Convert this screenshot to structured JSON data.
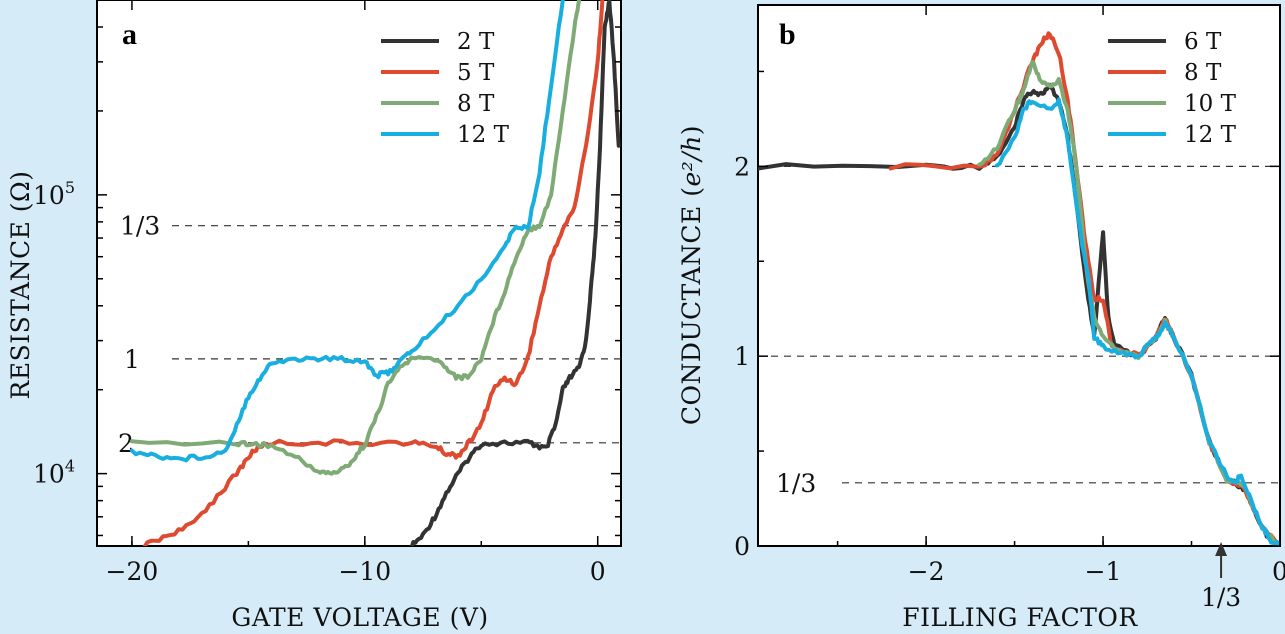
{
  "chart_data": [
    {
      "type": "line",
      "panel": "a",
      "xlabel": "GATE VOLTAGE (V)",
      "ylabel": "RESISTANCE (Ω)",
      "yscale": "log",
      "xlim": [
        -21.5,
        1
      ],
      "ylim": [
        5500,
        500000
      ],
      "xticks": [
        {
          "v": -20,
          "label": "−20"
        },
        {
          "v": -10,
          "label": "−10"
        },
        {
          "v": 0,
          "label": "0"
        }
      ],
      "yticks": [
        {
          "v": 10000,
          "base": "10",
          "exp": "4"
        },
        {
          "v": 100000,
          "base": "10",
          "exp": "5"
        }
      ],
      "reference_lines": [
        {
          "value": 77500,
          "label": "1/3"
        },
        {
          "value": 25800,
          "label": "1"
        },
        {
          "value": 12900,
          "label": "2"
        }
      ],
      "legend": [
        "2 T",
        "5 T",
        "8 T",
        "12 T"
      ],
      "series": [
        {
          "name": "2 T",
          "color": "#333333",
          "points": [
            [
              -8.0,
              5500
            ],
            [
              -7.5,
              6000
            ],
            [
              -7,
              7000
            ],
            [
              -6.5,
              8500
            ],
            [
              -6,
              10000
            ],
            [
              -5.5,
              11500
            ],
            [
              -5,
              12800
            ],
            [
              -4,
              12900
            ],
            [
              -3,
              12900
            ],
            [
              -2.5,
              12500
            ],
            [
              -2.2,
              12300
            ],
            [
              -1.8,
              15000
            ],
            [
              -1.5,
              20000
            ],
            [
              -1.2,
              22000
            ],
            [
              -0.8,
              24000
            ],
            [
              -0.5,
              30000
            ],
            [
              -0.3,
              45000
            ],
            [
              -0.1,
              70000
            ],
            [
              0.1,
              150000
            ],
            [
              0.3,
              400000
            ],
            [
              0.5,
              500000
            ],
            [
              0.7,
              300000
            ],
            [
              0.9,
              150000
            ]
          ]
        },
        {
          "name": "5 T",
          "color": "#dd4a30",
          "points": [
            [
              -19.5,
              5500
            ],
            [
              -18.5,
              6000
            ],
            [
              -17.5,
              6500
            ],
            [
              -16.5,
              8000
            ],
            [
              -15.5,
              10000
            ],
            [
              -15,
              11500
            ],
            [
              -14.5,
              12600
            ],
            [
              -14,
              12900
            ],
            [
              -12,
              12900
            ],
            [
              -10,
              12900
            ],
            [
              -8,
              12900
            ],
            [
              -7,
              12600
            ],
            [
              -6.5,
              11800
            ],
            [
              -6,
              11600
            ],
            [
              -5.5,
              13000
            ],
            [
              -5,
              15000
            ],
            [
              -4.5,
              20000
            ],
            [
              -4,
              22000
            ],
            [
              -3.5,
              21000
            ],
            [
              -3,
              26000
            ],
            [
              -2.5,
              40000
            ],
            [
              -2,
              60000
            ],
            [
              -1.5,
              75000
            ],
            [
              -1.0,
              90000
            ],
            [
              -0.5,
              150000
            ],
            [
              0,
              300000
            ],
            [
              0.2,
              500000
            ]
          ]
        },
        {
          "name": "8 T",
          "color": "#7faa76",
          "points": [
            [
              -20,
              12900
            ],
            [
              -15.5,
              12900
            ],
            [
              -15,
              12800
            ],
            [
              -14,
              12600
            ],
            [
              -13,
              11500
            ],
            [
              -12,
              10200
            ],
            [
              -11.5,
              10000
            ],
            [
              -11,
              10300
            ],
            [
              -10.5,
              11200
            ],
            [
              -10,
              12800
            ],
            [
              -9.5,
              16000
            ],
            [
              -9,
              21000
            ],
            [
              -8.5,
              24000
            ],
            [
              -8,
              25800
            ],
            [
              -7,
              25800
            ],
            [
              -6.5,
              24000
            ],
            [
              -6,
              22000
            ],
            [
              -5.5,
              22500
            ],
            [
              -5,
              26000
            ],
            [
              -4.5,
              35000
            ],
            [
              -4,
              45000
            ],
            [
              -3.5,
              60000
            ],
            [
              -3,
              75000
            ],
            [
              -2.5,
              78000
            ],
            [
              -2,
              100000
            ],
            [
              -1.5,
              200000
            ],
            [
              -1,
              400000
            ],
            [
              -0.8,
              500000
            ]
          ]
        },
        {
          "name": "12 T",
          "color": "#18aee0",
          "points": [
            [
              -20,
              12000
            ],
            [
              -19,
              11600
            ],
            [
              -18,
              11300
            ],
            [
              -17,
              11500
            ],
            [
              -16,
              12000
            ],
            [
              -15.5,
              15000
            ],
            [
              -15,
              19000
            ],
            [
              -14.5,
              22000
            ],
            [
              -14,
              25000
            ],
            [
              -13,
              25800
            ],
            [
              -12,
              25800
            ],
            [
              -11,
              25800
            ],
            [
              -10,
              25400
            ],
            [
              -9.5,
              22500
            ],
            [
              -9,
              23000
            ],
            [
              -8.5,
              25200
            ],
            [
              -8,
              27500
            ],
            [
              -7,
              33000
            ],
            [
              -6,
              40000
            ],
            [
              -5,
              50000
            ],
            [
              -4,
              65000
            ],
            [
              -3.5,
              78000
            ],
            [
              -3,
              75000
            ],
            [
              -2.5,
              120000
            ],
            [
              -2,
              250000
            ],
            [
              -1.5,
              500000
            ]
          ]
        }
      ]
    },
    {
      "type": "line",
      "panel": "b",
      "xlabel": "FILLING FACTOR",
      "ylabel": "CONDUCTANCE (e²/h)",
      "ylabel_prefix": "CONDUCTANCE (",
      "ylabel_var": "e²/h",
      "ylabel_suffix": ")",
      "xlim": [
        -2.95,
        0
      ],
      "ylim": [
        0,
        2.85
      ],
      "xticks": [
        {
          "v": -2,
          "label": "−2"
        },
        {
          "v": -1,
          "label": "−1"
        },
        {
          "v": 0,
          "label": "0"
        }
      ],
      "yticks": [
        {
          "v": 0,
          "label": "0"
        },
        {
          "v": 1,
          "label": "1"
        },
        {
          "v": 2,
          "label": "2"
        }
      ],
      "reference_lines": [
        {
          "value": 2,
          "label": ""
        },
        {
          "value": 1,
          "label": ""
        },
        {
          "value": 0.333,
          "label": "1/3"
        }
      ],
      "annotation": {
        "x": -0.333,
        "label": "1/3"
      },
      "legend": [
        "6 T",
        "8 T",
        "10 T",
        "12 T"
      ],
      "series": [
        {
          "name": "6 T",
          "color": "#333333",
          "points": [
            [
              -2.95,
              2.0
            ],
            [
              -2.0,
              2.0
            ],
            [
              -1.7,
              2.0
            ],
            [
              -1.6,
              2.05
            ],
            [
              -1.5,
              2.2
            ],
            [
              -1.45,
              2.35
            ],
            [
              -1.4,
              2.4
            ],
            [
              -1.35,
              2.38
            ],
            [
              -1.3,
              2.42
            ],
            [
              -1.25,
              2.35
            ],
            [
              -1.2,
              2.15
            ],
            [
              -1.15,
              1.8
            ],
            [
              -1.1,
              1.4
            ],
            [
              -1.05,
              1.1
            ],
            [
              -1.0,
              1.65
            ],
            [
              -0.97,
              1.2
            ],
            [
              -0.93,
              1.05
            ],
            [
              -0.8,
              1.0
            ],
            [
              -0.7,
              1.1
            ],
            [
              -0.65,
              1.2
            ],
            [
              -0.6,
              1.1
            ],
            [
              -0.5,
              0.9
            ],
            [
              -0.4,
              0.55
            ],
            [
              -0.3,
              0.35
            ],
            [
              -0.25,
              0.33
            ],
            [
              -0.2,
              0.3
            ],
            [
              -0.1,
              0.1
            ],
            [
              -0.05,
              0.02
            ],
            [
              0,
              0
            ]
          ]
        },
        {
          "name": "8 T",
          "color": "#dd4a30",
          "points": [
            [
              -2.2,
              2.0
            ],
            [
              -1.7,
              2.0
            ],
            [
              -1.6,
              2.05
            ],
            [
              -1.5,
              2.3
            ],
            [
              -1.4,
              2.55
            ],
            [
              -1.35,
              2.65
            ],
            [
              -1.3,
              2.7
            ],
            [
              -1.25,
              2.6
            ],
            [
              -1.2,
              2.35
            ],
            [
              -1.15,
              2.0
            ],
            [
              -1.1,
              1.6
            ],
            [
              -1.05,
              1.3
            ],
            [
              -1.0,
              1.3
            ],
            [
              -0.95,
              1.05
            ],
            [
              -0.8,
              1.0
            ],
            [
              -0.7,
              1.1
            ],
            [
              -0.65,
              1.2
            ],
            [
              -0.6,
              1.1
            ],
            [
              -0.5,
              0.9
            ],
            [
              -0.4,
              0.55
            ],
            [
              -0.3,
              0.35
            ],
            [
              -0.2,
              0.3
            ],
            [
              -0.1,
              0.1
            ],
            [
              0,
              0
            ]
          ]
        },
        {
          "name": "10 T",
          "color": "#7faa76",
          "points": [
            [
              -1.7,
              2.0
            ],
            [
              -1.6,
              2.1
            ],
            [
              -1.5,
              2.3
            ],
            [
              -1.45,
              2.4
            ],
            [
              -1.4,
              2.55
            ],
            [
              -1.35,
              2.45
            ],
            [
              -1.3,
              2.42
            ],
            [
              -1.25,
              2.45
            ],
            [
              -1.2,
              2.3
            ],
            [
              -1.15,
              2.0
            ],
            [
              -1.1,
              1.5
            ],
            [
              -1.05,
              1.2
            ],
            [
              -1.0,
              1.1
            ],
            [
              -0.9,
              1.02
            ],
            [
              -0.8,
              1.0
            ],
            [
              -0.7,
              1.1
            ],
            [
              -0.65,
              1.18
            ],
            [
              -0.6,
              1.1
            ],
            [
              -0.5,
              0.9
            ],
            [
              -0.4,
              0.55
            ],
            [
              -0.3,
              0.35
            ],
            [
              -0.2,
              0.32
            ],
            [
              -0.1,
              0.1
            ],
            [
              0,
              0
            ]
          ]
        },
        {
          "name": "12 T",
          "color": "#18aee0",
          "points": [
            [
              -1.6,
              2.0
            ],
            [
              -1.5,
              2.15
            ],
            [
              -1.45,
              2.3
            ],
            [
              -1.4,
              2.35
            ],
            [
              -1.3,
              2.3
            ],
            [
              -1.25,
              2.35
            ],
            [
              -1.2,
              2.15
            ],
            [
              -1.15,
              1.8
            ],
            [
              -1.12,
              1.6
            ],
            [
              -1.08,
              1.4
            ],
            [
              -1.05,
              1.1
            ],
            [
              -1.0,
              1.05
            ],
            [
              -0.9,
              1.02
            ],
            [
              -0.8,
              1.0
            ],
            [
              -0.7,
              1.1
            ],
            [
              -0.65,
              1.17
            ],
            [
              -0.6,
              1.1
            ],
            [
              -0.5,
              0.9
            ],
            [
              -0.4,
              0.55
            ],
            [
              -0.3,
              0.37
            ],
            [
              -0.25,
              0.33
            ],
            [
              -0.22,
              0.38
            ],
            [
              -0.15,
              0.2
            ],
            [
              -0.1,
              0.1
            ],
            [
              -0.05,
              0.03
            ],
            [
              0,
              0
            ]
          ]
        }
      ]
    }
  ]
}
